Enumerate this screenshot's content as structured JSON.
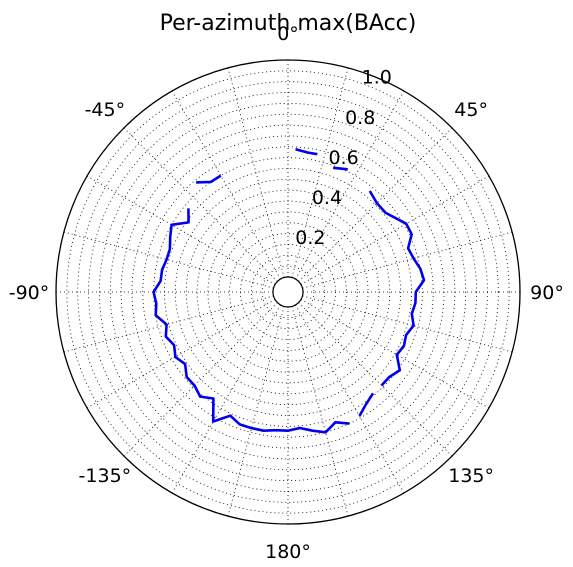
{
  "chart_data": {
    "type": "line",
    "projection": "polar",
    "title": "Per-azimuth max(BAcc)",
    "theta_zero_location": "top",
    "theta_direction": "clockwise",
    "r_range": [
      0,
      1.0
    ],
    "r_ticks": [
      0.2,
      0.4,
      0.6,
      0.8,
      1.0
    ],
    "r_tick_labels": [
      "0.2",
      "0.4",
      "0.6",
      "0.8",
      "1.0"
    ],
    "theta_ticks_deg": [
      0,
      45,
      90,
      135,
      180,
      225,
      270,
      315
    ],
    "theta_tick_labels": [
      "0°",
      "45°",
      "90°",
      "135°",
      "180°",
      "-135°",
      "-90°",
      "-45°"
    ],
    "grid": true,
    "line_color": "#0000ee",
    "series": [
      {
        "segments": [
          [
            [
              3,
              0.59
            ],
            [
              8,
              0.58
            ],
            [
              12,
              0.58
            ]
          ],
          [
            [
              20,
              0.54
            ],
            [
              26,
              0.56
            ]
          ],
          [
            [
              39,
              0.53
            ],
            [
              45,
              0.51
            ],
            [
              51,
              0.51
            ],
            [
              60,
              0.56
            ],
            [
              65,
              0.56
            ],
            [
              70,
              0.52
            ],
            [
              75,
              0.53
            ],
            [
              80,
              0.55
            ],
            [
              85,
              0.56
            ],
            [
              90,
              0.52
            ],
            [
              95,
              0.52
            ],
            [
              100,
              0.51
            ],
            [
              105,
              0.53
            ],
            [
              110,
              0.51
            ],
            [
              115,
              0.52
            ],
            [
              120,
              0.51
            ],
            [
              125,
              0.56
            ],
            [
              130,
              0.54
            ],
            [
              135,
              0.54
            ]
          ],
          [
            [
              140,
              0.54
            ],
            [
              145,
              0.56
            ],
            [
              150,
              0.59
            ]
          ],
          [
            [
              155,
              0.6
            ],
            [
              160,
              0.57
            ],
            [
              165,
              0.6
            ],
            [
              170,
              0.58
            ],
            [
              175,
              0.56
            ],
            [
              180,
              0.57
            ],
            [
              185,
              0.57
            ],
            [
              190,
              0.58
            ],
            [
              195,
              0.58
            ],
            [
              200,
              0.58
            ],
            [
              205,
              0.56
            ],
            [
              210,
              0.62
            ],
            [
              215,
              0.53
            ],
            [
              220,
              0.56
            ],
            [
              225,
              0.54
            ],
            [
              230,
              0.54
            ],
            [
              235,
              0.51
            ],
            [
              240,
              0.53
            ],
            [
              245,
              0.51
            ],
            [
              250,
              0.53
            ],
            [
              255,
              0.51
            ],
            [
              260,
              0.55
            ],
            [
              265,
              0.54
            ],
            [
              270,
              0.55
            ],
            [
              275,
              0.52
            ],
            [
              280,
              0.52
            ],
            [
              285,
              0.51
            ],
            [
              290,
              0.51
            ],
            [
              295,
              0.53
            ],
            [
              300,
              0.55
            ],
            [
              305,
              0.49
            ],
            [
              310,
              0.53
            ]
          ],
          [
            [
              320,
              0.59
            ],
            [
              325,
              0.55
            ],
            [
              330,
              0.55
            ]
          ]
        ]
      }
    ]
  }
}
